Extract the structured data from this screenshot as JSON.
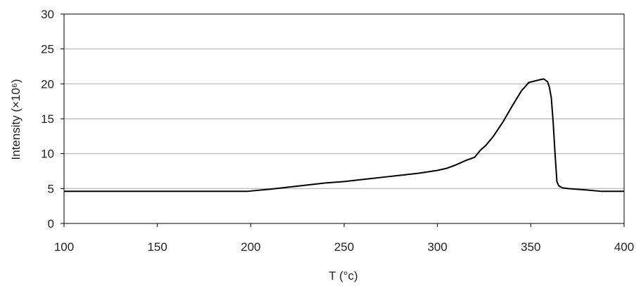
{
  "chart_data": {
    "type": "line",
    "title": "",
    "xlabel": "T (°c)",
    "ylabel": "Intensity (×10⁶)",
    "xlim": [
      100,
      400
    ],
    "ylim": [
      0,
      30
    ],
    "xticks": [
      100,
      150,
      200,
      250,
      300,
      350,
      400
    ],
    "yticks": [
      0,
      5,
      10,
      15,
      20,
      25,
      30
    ],
    "grid": "horizontal",
    "legend": "none",
    "line_color": "#000000",
    "grid_color": "#b3b3b3",
    "series": [
      {
        "x": [
          100,
          150,
          198,
          210,
          220,
          230,
          240,
          250,
          260,
          270,
          280,
          290,
          300,
          305,
          310,
          315,
          320,
          323,
          326,
          330,
          335,
          340,
          345,
          349,
          352,
          355,
          357,
          359,
          360,
          361,
          362,
          363,
          364,
          365,
          367,
          370,
          380,
          388,
          400
        ],
        "y": [
          4.6,
          4.6,
          4.6,
          4.9,
          5.2,
          5.5,
          5.8,
          6.0,
          6.3,
          6.6,
          6.9,
          7.2,
          7.6,
          7.9,
          8.4,
          9.0,
          9.5,
          10.5,
          11.2,
          12.5,
          14.5,
          16.8,
          19.0,
          20.2,
          20.4,
          20.6,
          20.7,
          20.3,
          19.5,
          18.0,
          14.5,
          10.0,
          6.0,
          5.4,
          5.1,
          5.0,
          4.8,
          4.6,
          4.6
        ]
      }
    ]
  }
}
